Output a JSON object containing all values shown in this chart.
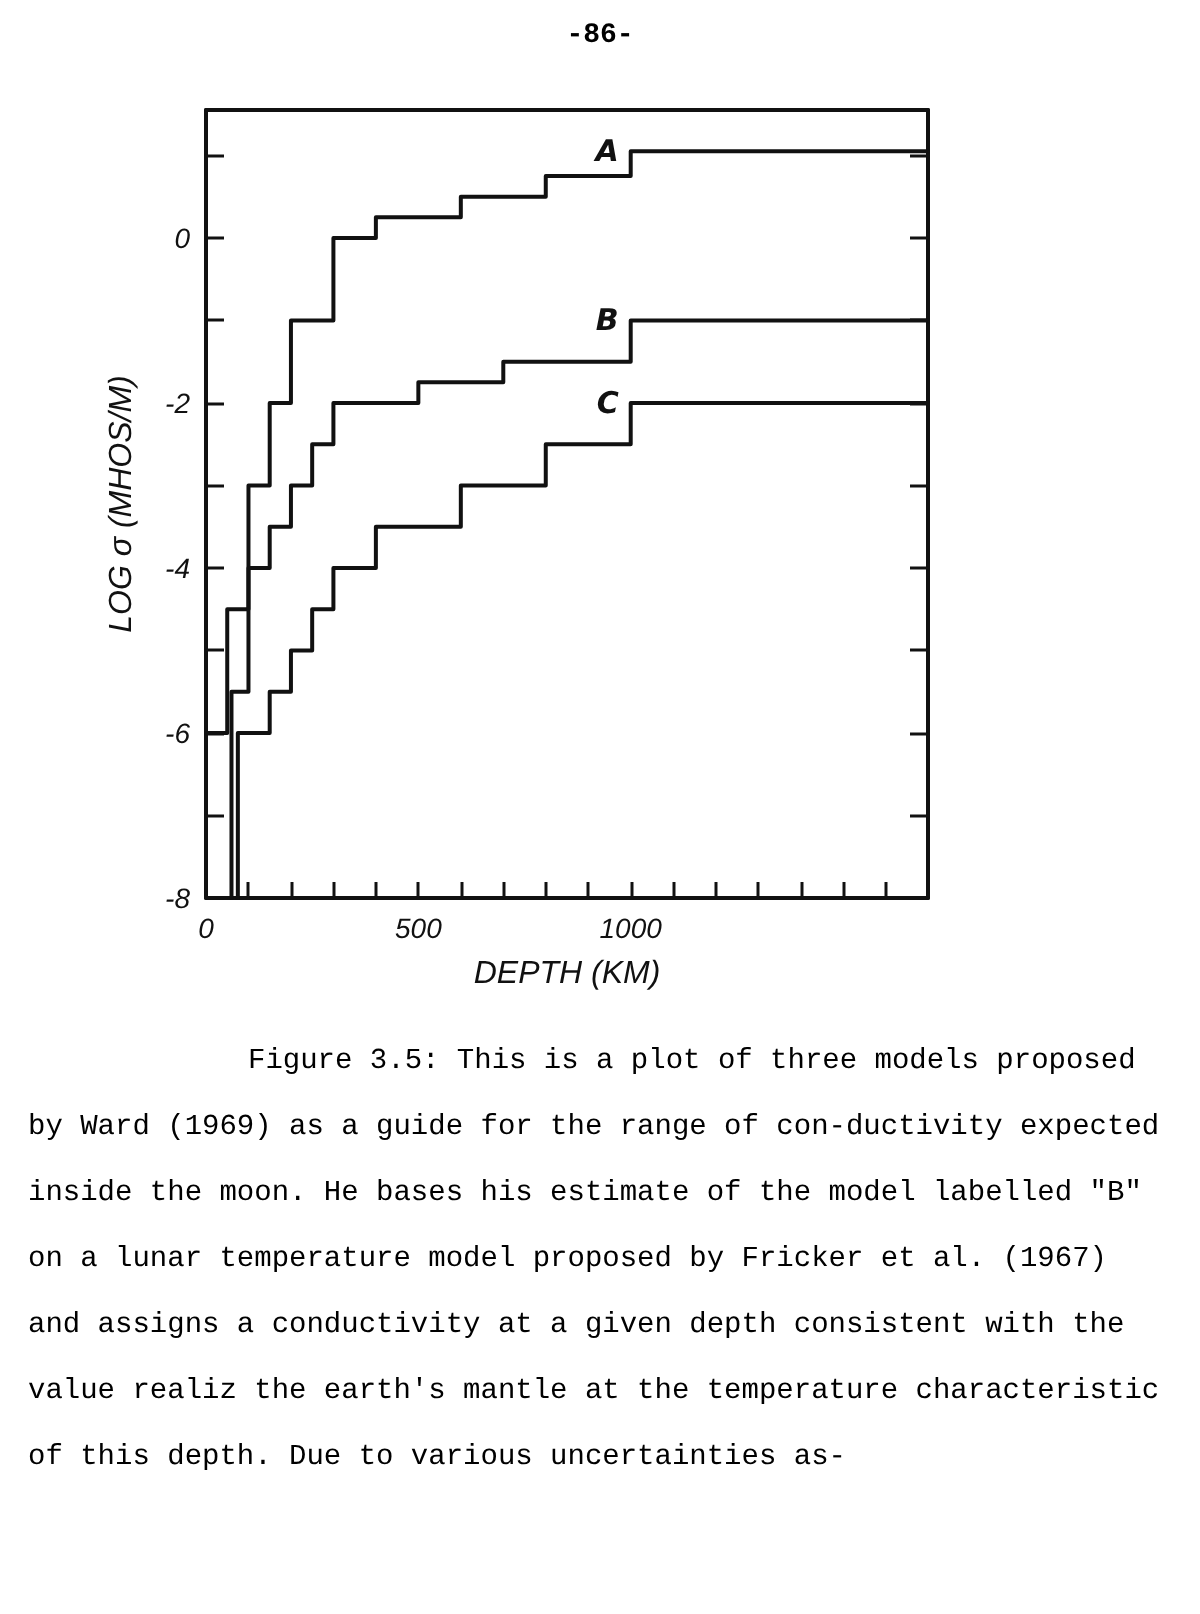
{
  "chart_data": {
    "type": "step",
    "xlabel": "DEPTH (KM)",
    "ylabel": "LOG σ (MHOS/M)",
    "series": [
      {
        "name": "A",
        "color": "#111111",
        "x": [
          0,
          50,
          100,
          150,
          200,
          300,
          400,
          600,
          800,
          1000,
          1700
        ],
        "values": [
          -6,
          -4.5,
          -3,
          -2,
          -1,
          0,
          0.25,
          0.5,
          0.75,
          1.05,
          1.05
        ]
      },
      {
        "name": "B",
        "color": "#111111",
        "x": [
          60,
          60,
          100,
          150,
          200,
          250,
          300,
          500,
          700,
          1000,
          1700
        ],
        "values": [
          -8,
          -5.5,
          -4,
          -3.5,
          -3,
          -2.5,
          -2,
          -1.75,
          -1.5,
          -1,
          -1
        ]
      },
      {
        "name": "C",
        "color": "#111111",
        "x": [
          75,
          75,
          150,
          200,
          250,
          300,
          400,
          600,
          800,
          1000,
          1700
        ],
        "values": [
          -8,
          -6,
          -5.5,
          -5,
          -4.5,
          -4,
          -3.5,
          -3,
          -2.5,
          -2,
          -2
        ]
      }
    ],
    "xlim": [
      0,
      1700
    ],
    "xticks": [
      0,
      {
        "value": 100,
        "label": null
      },
      {
        "value": 200,
        "label": null
      },
      {
        "value": 300,
        "label": null
      },
      {
        "value": 400,
        "label": null
      },
      500,
      {
        "value": 600,
        "label": null
      },
      {
        "value": 700,
        "label": null
      },
      {
        "value": 800,
        "label": null
      },
      {
        "value": 900,
        "label": null
      },
      1000,
      {
        "value": 1100,
        "label": null
      },
      {
        "value": 1200,
        "label": null
      },
      {
        "value": 1300,
        "label": null
      },
      {
        "value": 1400,
        "label": null
      },
      {
        "value": 1500,
        "label": null
      },
      {
        "value": 1600,
        "label": null
      }
    ],
    "ylim": [
      -8,
      1.55
    ],
    "yticks": [
      -8,
      {
        "value": -7,
        "label": null
      },
      -6,
      {
        "value": -5,
        "label": null
      },
      -4,
      {
        "value": -3,
        "label": null
      },
      -2,
      {
        "value": -1,
        "label": null
      },
      0,
      {
        "value": 1,
        "label": null
      }
    ],
    "grid": false,
    "legend": false,
    "marker": "none",
    "line_style": "solid",
    "annotations": [
      "-86-",
      "Figure 3.5:  This is a plot of three models proposed by Ward (1969) as a guide for the range of con-ductivity expected inside the moon.  He bases his estimate of the model labelled \"B\" on a lunar temperature model proposed by Fricker et al. (1967) and assigns a conductivity at a given depth consistent with the value realiz the earth's mantle at the temperature characteristic of this depth.  Due to various uncertainties as-"
    ]
  }
}
